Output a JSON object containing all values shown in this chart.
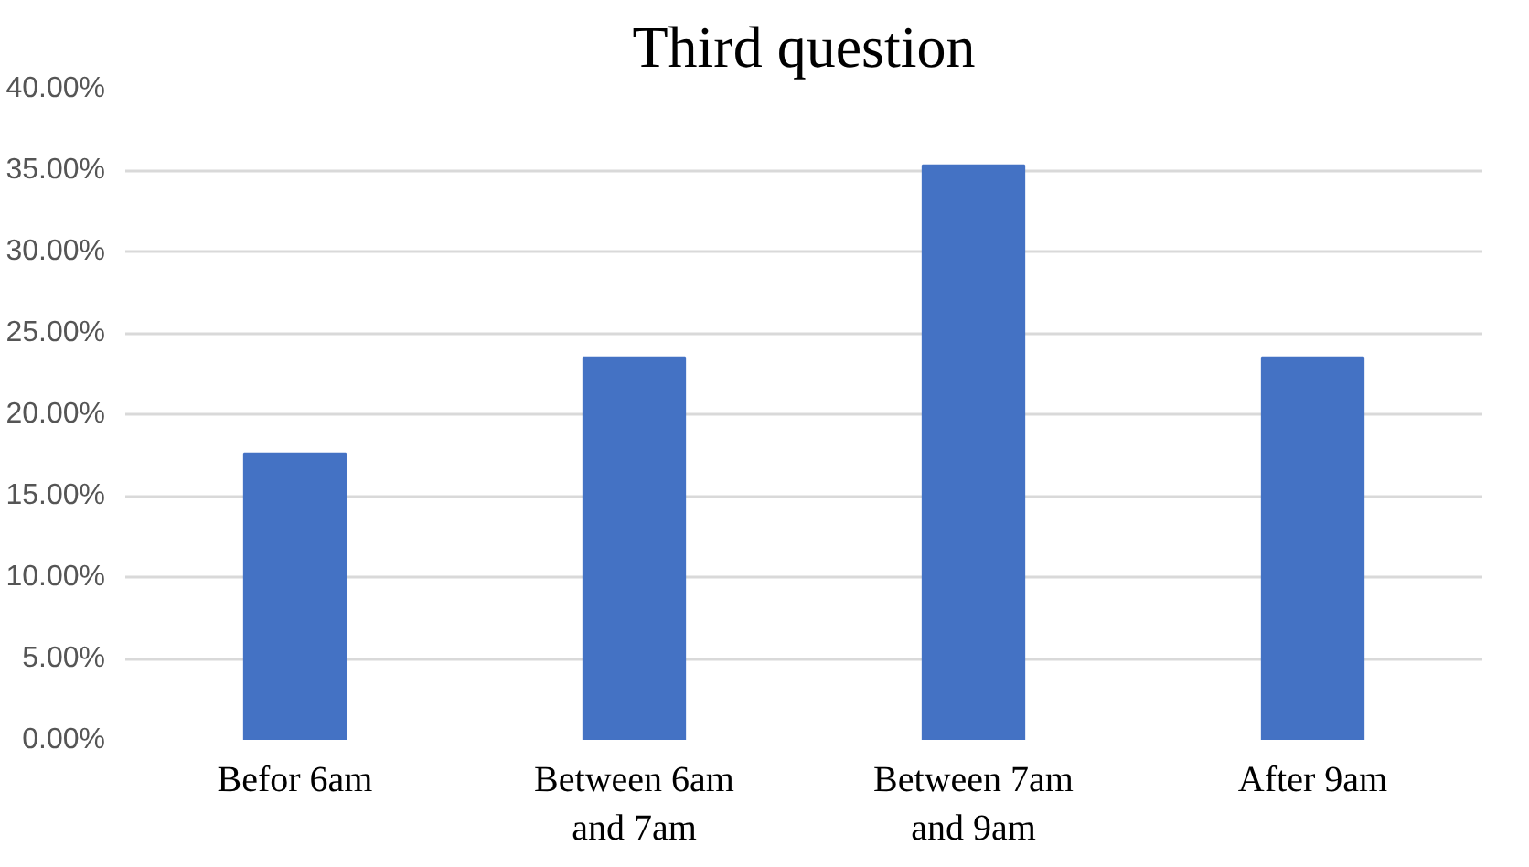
{
  "chart_data": {
    "type": "bar",
    "title": "Third question",
    "categories": [
      "Befor 6am",
      "Between 6am and 7am",
      "Between 7am and 9am",
      "After 9am"
    ],
    "values": [
      17.6,
      23.5,
      35.3,
      23.5
    ],
    "color": "#4472c4",
    "ylim": [
      0,
      40
    ],
    "yticks": [
      {
        "value": 0,
        "label": "0.00%"
      },
      {
        "value": 5,
        "label": "5.00%"
      },
      {
        "value": 10,
        "label": "10.00%"
      },
      {
        "value": 15,
        "label": "15.00%"
      },
      {
        "value": 20,
        "label": "20.00%"
      },
      {
        "value": 25,
        "label": "25.00%"
      },
      {
        "value": 30,
        "label": "30.00%"
      },
      {
        "value": 35,
        "label": "35.00%"
      },
      {
        "value": 40,
        "label": "40.00%"
      }
    ],
    "grid": "y"
  }
}
